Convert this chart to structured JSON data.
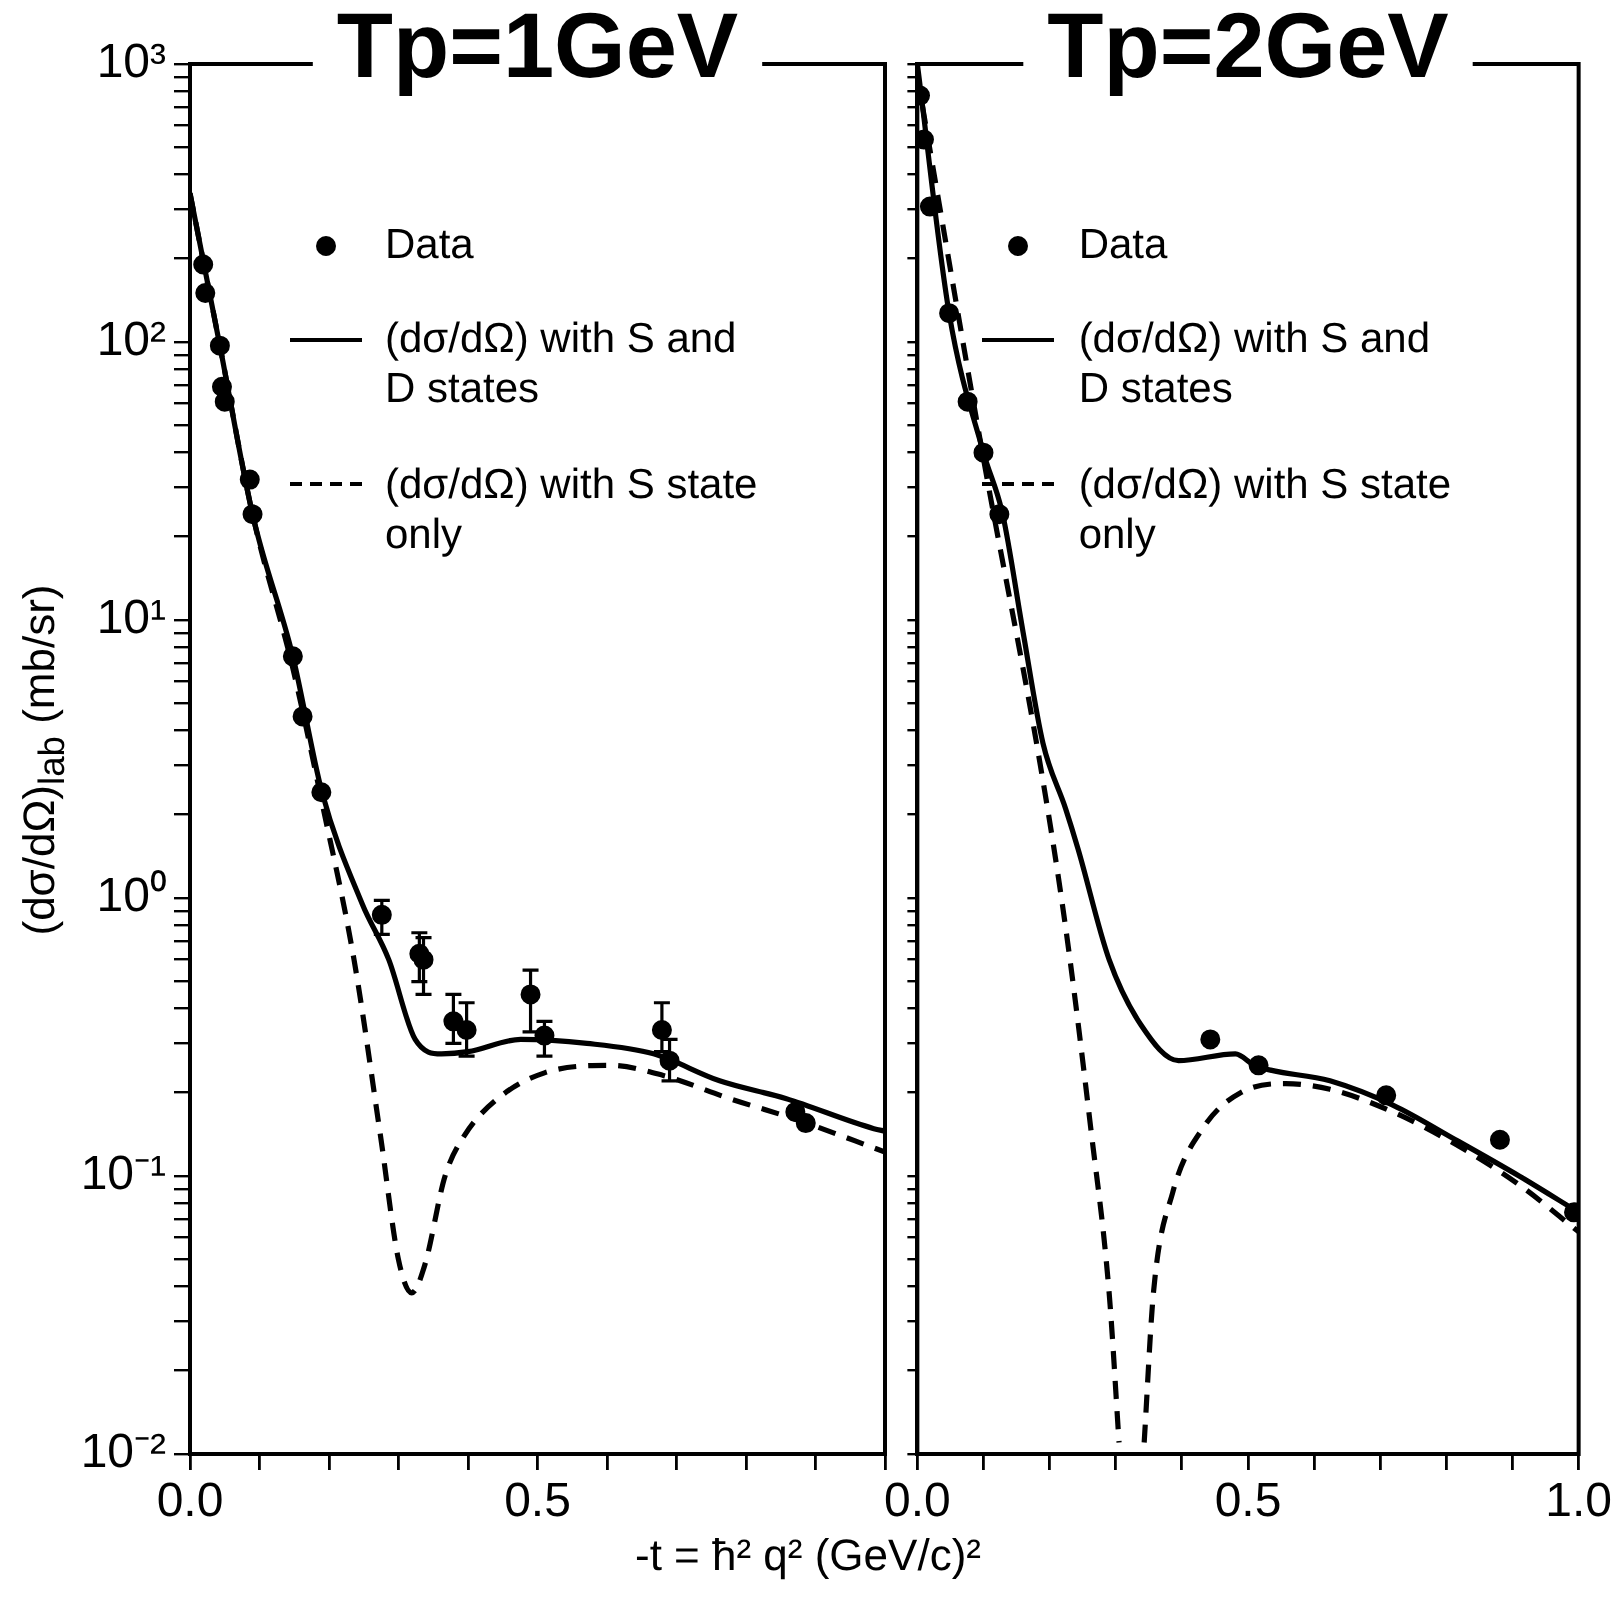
{
  "chart_data": [
    {
      "type": "scatter",
      "title": "Tp=1GeV",
      "xlabel": "-t = ħ² q² (GeV/c)²",
      "ylabel": "(dσ/dΩ)$_{lab}$ (mb/sr)",
      "log": "y",
      "legend": "top right",
      "marker": "circle",
      "xlim": [
        0,
        1
      ],
      "xticks": [
        {
          "value": 0,
          "label": "0.0"
        },
        {
          "value": 0.1,
          "label": null
        },
        {
          "value": 0.2,
          "label": null
        },
        {
          "value": 0.3,
          "label": null
        },
        {
          "value": 0.4,
          "label": null
        },
        {
          "value": 0.5,
          "label": "0.5"
        },
        {
          "value": 0.6,
          "label": null
        },
        {
          "value": 0.7,
          "label": null
        },
        {
          "value": 0.8,
          "label": null
        },
        {
          "value": 0.9,
          "label": null
        },
        {
          "value": 1,
          "label": null
        }
      ],
      "ylim": [
        0.01,
        1000
      ],
      "yticks": [
        {
          "value": 0.01,
          "label": "10⁻²"
        },
        {
          "value": 0.02,
          "label": null
        },
        {
          "value": 0.03,
          "label": null
        },
        {
          "value": 0.04,
          "label": null
        },
        {
          "value": 0.05,
          "label": null
        },
        {
          "value": 0.06,
          "label": null
        },
        {
          "value": 0.07,
          "label": null
        },
        {
          "value": 0.08,
          "label": null
        },
        {
          "value": 0.09,
          "label": null
        },
        {
          "value": 0.1,
          "label": "10⁻¹"
        },
        {
          "value": 0.2,
          "label": null
        },
        {
          "value": 0.3,
          "label": null
        },
        {
          "value": 0.4,
          "label": null
        },
        {
          "value": 0.5,
          "label": null
        },
        {
          "value": 0.6,
          "label": null
        },
        {
          "value": 0.7,
          "label": null
        },
        {
          "value": 0.8,
          "label": null
        },
        {
          "value": 0.9,
          "label": null
        },
        {
          "value": 1,
          "label": "10⁰"
        },
        {
          "value": 2,
          "label": null
        },
        {
          "value": 3,
          "label": null
        },
        {
          "value": 4,
          "label": null
        },
        {
          "value": 5,
          "label": null
        },
        {
          "value": 6,
          "label": null
        },
        {
          "value": 7,
          "label": null
        },
        {
          "value": 8,
          "label": null
        },
        {
          "value": 9,
          "label": null
        },
        {
          "value": 10,
          "label": "10¹"
        },
        {
          "value": 20,
          "label": null
        },
        {
          "value": 30,
          "label": null
        },
        {
          "value": 40,
          "label": null
        },
        {
          "value": 50,
          "label": null
        },
        {
          "value": 60,
          "label": null
        },
        {
          "value": 70,
          "label": null
        },
        {
          "value": 80,
          "label": null
        },
        {
          "value": 90,
          "label": null
        },
        {
          "value": 100,
          "label": "10²"
        },
        {
          "value": 200,
          "label": null
        },
        {
          "value": 300,
          "label": null
        },
        {
          "value": 400,
          "label": null
        },
        {
          "value": 500,
          "label": null
        },
        {
          "value": 600,
          "label": null
        },
        {
          "value": 700,
          "label": null
        },
        {
          "value": 800,
          "label": null
        },
        {
          "value": 900,
          "label": null
        },
        {
          "value": 1000,
          "label": "10³"
        }
      ],
      "series": [
        {
          "name": "Data",
          "type": "scatter",
          "color": "#000000",
          "x": [
            0.019,
            0.022,
            0.043,
            0.046,
            0.05,
            0.086,
            0.09,
            0.148,
            0.162,
            0.189,
            0.276,
            0.33,
            0.336,
            0.379,
            0.398,
            0.49,
            0.51,
            0.679,
            0.69,
            0.871,
            0.886
          ],
          "values": [
            190,
            150,
            97,
            69,
            61,
            32,
            24,
            7.4,
            4.5,
            2.4,
            0.87,
            0.63,
            0.6,
            0.36,
            0.335,
            0.45,
            0.32,
            0.335,
            0.26,
            0.17,
            0.155
          ],
          "errors": [
            null,
            null,
            null,
            null,
            null,
            null,
            null,
            null,
            null,
            null,
            [
              0.74,
              0.98
            ],
            [
              0.5,
              0.75
            ],
            [
              0.45,
              0.72
            ],
            [
              0.3,
              0.45
            ],
            [
              0.27,
              0.42
            ],
            [
              0.33,
              0.55
            ],
            [
              0.27,
              0.36
            ],
            [
              0.28,
              0.42
            ],
            [
              0.22,
              0.31
            ],
            null,
            null
          ]
        },
        {
          "name": "(dσ/dΩ) with S and D states",
          "type": "line",
          "marker": "none",
          "line_style": "solid",
          "color": "#000000",
          "x": [
            0,
            0.043,
            0.09,
            0.148,
            0.19,
            0.248,
            0.286,
            0.324,
            0.362,
            0.4,
            0.476,
            0.571,
            0.667,
            0.762,
            0.857,
            0.984,
            1.0
          ],
          "values": [
            343,
            97,
            24,
            7.4,
            2.4,
            0.95,
            0.6,
            0.31,
            0.275,
            0.28,
            0.31,
            0.3,
            0.275,
            0.22,
            0.19,
            0.148,
            0.145
          ]
        },
        {
          "name": "(dσ/dΩ) with S state only",
          "type": "line",
          "marker": "none",
          "line_style": "dashed",
          "color": "#000000",
          "x": [
            0,
            0.043,
            0.09,
            0.148,
            0.19,
            0.236,
            0.274,
            0.3,
            0.319,
            0.338,
            0.367,
            0.395,
            0.443,
            0.51,
            0.605,
            0.681,
            0.776,
            0.871,
            1.0
          ],
          "values": [
            343,
            97,
            24,
            6.7,
            2.2,
            0.6,
            0.14,
            0.05,
            0.038,
            0.048,
            0.1,
            0.14,
            0.19,
            0.235,
            0.25,
            0.23,
            0.19,
            0.16,
            0.122
          ]
        }
      ]
    },
    {
      "type": "scatter",
      "title": "Tp=2GeV",
      "log": "y",
      "legend": "top right",
      "marker": "circle",
      "tick_labels": "x",
      "xlim": [
        0,
        1
      ],
      "xticks": [
        {
          "value": 0,
          "label": "0.0"
        },
        {
          "value": 0.1,
          "label": null
        },
        {
          "value": 0.2,
          "label": null
        },
        {
          "value": 0.3,
          "label": null
        },
        {
          "value": 0.4,
          "label": null
        },
        {
          "value": 0.5,
          "label": "0.5"
        },
        {
          "value": 0.6,
          "label": null
        },
        {
          "value": 0.7,
          "label": null
        },
        {
          "value": 0.8,
          "label": null
        },
        {
          "value": 0.9,
          "label": null
        },
        {
          "value": 1,
          "label": "1.0"
        }
      ],
      "ylim": [
        0.01,
        1000
      ],
      "yticks": [
        {
          "value": 0.01,
          "label": null
        },
        {
          "value": 0.02,
          "label": null
        },
        {
          "value": 0.03,
          "label": null
        },
        {
          "value": 0.04,
          "label": null
        },
        {
          "value": 0.05,
          "label": null
        },
        {
          "value": 0.06,
          "label": null
        },
        {
          "value": 0.07,
          "label": null
        },
        {
          "value": 0.08,
          "label": null
        },
        {
          "value": 0.09,
          "label": null
        },
        {
          "value": 0.1,
          "label": null
        },
        {
          "value": 0.2,
          "label": null
        },
        {
          "value": 0.3,
          "label": null
        },
        {
          "value": 0.4,
          "label": null
        },
        {
          "value": 0.5,
          "label": null
        },
        {
          "value": 0.6,
          "label": null
        },
        {
          "value": 0.7,
          "label": null
        },
        {
          "value": 0.8,
          "label": null
        },
        {
          "value": 0.9,
          "label": null
        },
        {
          "value": 1,
          "label": null
        },
        {
          "value": 2,
          "label": null
        },
        {
          "value": 3,
          "label": null
        },
        {
          "value": 4,
          "label": null
        },
        {
          "value": 5,
          "label": null
        },
        {
          "value": 6,
          "label": null
        },
        {
          "value": 7,
          "label": null
        },
        {
          "value": 8,
          "label": null
        },
        {
          "value": 9,
          "label": null
        },
        {
          "value": 10,
          "label": null
        },
        {
          "value": 20,
          "label": null
        },
        {
          "value": 30,
          "label": null
        },
        {
          "value": 40,
          "label": null
        },
        {
          "value": 50,
          "label": null
        },
        {
          "value": 60,
          "label": null
        },
        {
          "value": 70,
          "label": null
        },
        {
          "value": 80,
          "label": null
        },
        {
          "value": 90,
          "label": null
        },
        {
          "value": 100,
          "label": null
        },
        {
          "value": 200,
          "label": null
        },
        {
          "value": 300,
          "label": null
        },
        {
          "value": 400,
          "label": null
        },
        {
          "value": 500,
          "label": null
        },
        {
          "value": 600,
          "label": null
        },
        {
          "value": 700,
          "label": null
        },
        {
          "value": 800,
          "label": null
        },
        {
          "value": 900,
          "label": null
        },
        {
          "value": 1000,
          "label": null
        }
      ],
      "series": [
        {
          "name": "Data",
          "type": "scatter",
          "color": "#000000",
          "x": [
            0.004,
            0.01,
            0.019,
            0.048,
            0.076,
            0.1,
            0.124,
            0.443,
            0.516,
            0.709,
            0.881,
            0.993
          ],
          "values": [
            770,
            535,
            307,
            127,
            61,
            40,
            24,
            0.31,
            0.25,
            0.195,
            0.135,
            0.074
          ]
        },
        {
          "name": "(dσ/dΩ) with S and D states",
          "type": "line",
          "marker": "none",
          "line_style": "solid",
          "color": "#000000",
          "x": [
            0,
            0.048,
            0.1,
            0.129,
            0.16,
            0.19,
            0.224,
            0.243,
            0.29,
            0.338,
            0.395,
            0.481,
            0.51,
            0.624,
            0.719,
            0.814,
            0.91,
            1.0
          ],
          "values": [
            1000,
            127,
            40,
            24,
            9,
            3.6,
            2.1,
            1.5,
            0.6,
            0.35,
            0.26,
            0.275,
            0.25,
            0.22,
            0.18,
            0.135,
            0.1,
            0.074
          ]
        },
        {
          "name": "(dσ/dΩ) with S state only",
          "type": "line",
          "marker": "none",
          "line_style": "dashed",
          "color": "#000000",
          "x": [
            0,
            0.1,
            0.186,
            0.224,
            0.262,
            0.29,
            0.305,
            0.32,
            0.343,
            0.357,
            0.386,
            0.433,
            0.49,
            0.557,
            0.624,
            0.719,
            0.814,
            0.91,
            1.0
          ],
          "values": [
            900,
            38,
            3.0,
            0.79,
            0.15,
            0.038,
            0.011,
            null,
            0.011,
            0.038,
            0.087,
            0.15,
            0.2,
            0.215,
            0.205,
            0.17,
            0.13,
            0.093,
            0.063
          ]
        }
      ]
    }
  ]
}
